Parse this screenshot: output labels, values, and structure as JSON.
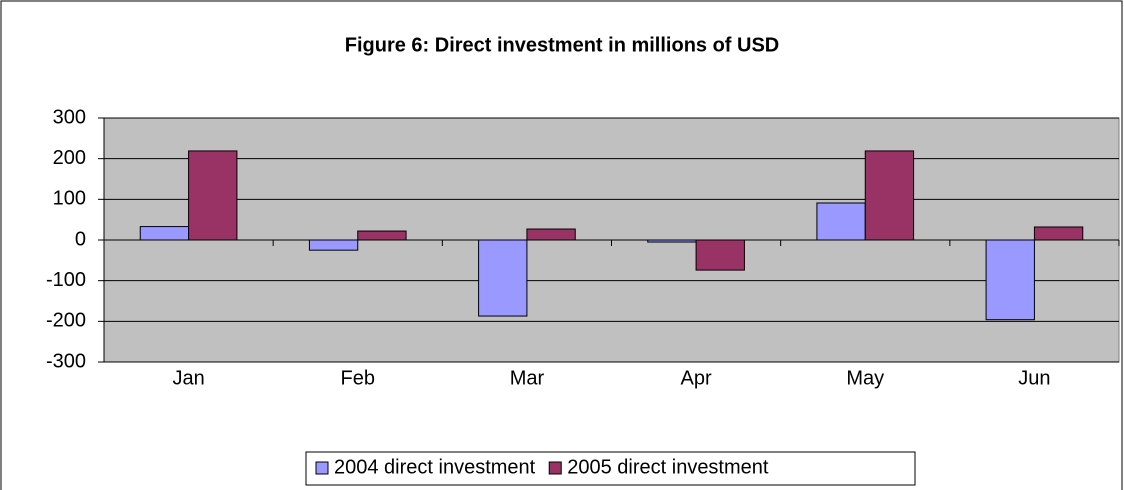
{
  "chart_data": {
    "type": "bar",
    "title": "Figure 6: Direct investment in millions of USD",
    "categories": [
      "Jan",
      "Feb",
      "Mar",
      "Apr",
      "May",
      "Jun"
    ],
    "series": [
      {
        "name": "2004 direct investment",
        "color": "#9999ff",
        "values": [
          33,
          -25,
          -187,
          -5,
          91,
          -196
        ]
      },
      {
        "name": "2005 direct investment",
        "color": "#993366",
        "values": [
          219,
          22,
          27,
          -74,
          219,
          32
        ]
      }
    ],
    "ylim": [
      -300,
      300
    ],
    "yticks": [
      -300,
      -200,
      -100,
      0,
      100,
      200,
      300
    ],
    "grid": true,
    "legend": "bottom"
  }
}
